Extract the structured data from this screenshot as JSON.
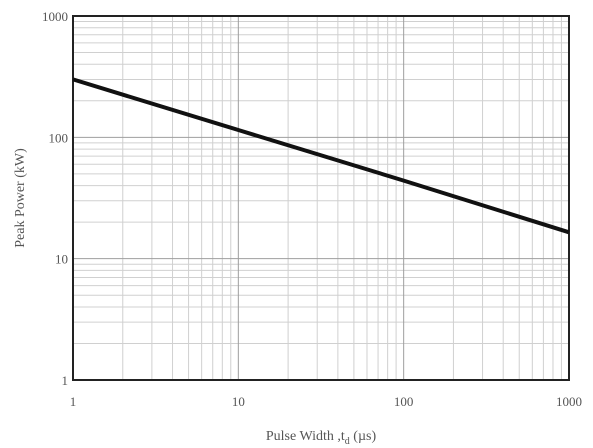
{
  "chart_data": {
    "type": "line",
    "title": "",
    "xlabel": {
      "main": "Pulse Width ,t",
      "subscript": "d",
      "unit": " (µs)"
    },
    "ylabel": "Peak Power  (kW)",
    "x_scale": "log",
    "y_scale": "log",
    "xlim": [
      1,
      1000
    ],
    "ylim": [
      1,
      1000
    ],
    "x_ticks": [
      {
        "value": 1,
        "label": "1"
      },
      {
        "value": 10,
        "label": "10"
      },
      {
        "value": 100,
        "label": "100"
      },
      {
        "value": 1000,
        "label": "1000"
      }
    ],
    "y_ticks": [
      {
        "value": 1,
        "label": "1"
      },
      {
        "value": 10,
        "label": "10"
      },
      {
        "value": 100,
        "label": "100"
      },
      {
        "value": 1000,
        "label": "1000"
      }
    ],
    "grid": true,
    "series": [
      {
        "x": [
          1,
          10,
          100,
          1000
        ],
        "y": [
          300,
          115,
          44,
          16.5
        ],
        "color": "#111111"
      }
    ]
  }
}
